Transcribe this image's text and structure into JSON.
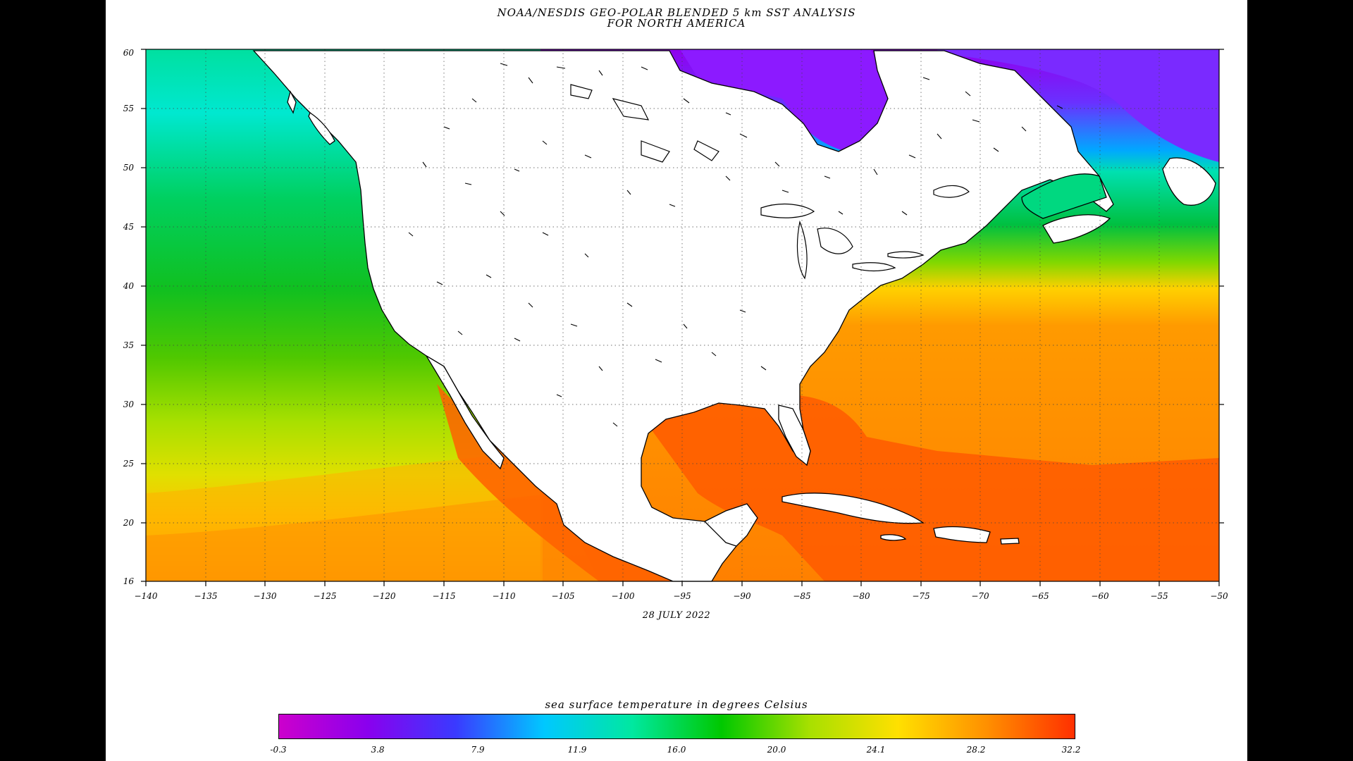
{
  "title_line1": "NOAA/NESDIS GEO-POLAR BLENDED 5 km SST ANALYSIS",
  "title_line2": "FOR NORTH AMERICA",
  "date": "28 JULY 2022",
  "colorbar": {
    "title": "sea surface temperature in degrees Celsius",
    "ticks": [
      "-0.3",
      "3.8",
      "7.9",
      "11.9",
      "16.0",
      "20.0",
      "24.1",
      "28.2",
      "32.2"
    ],
    "colors": [
      "#cc00cc",
      "#8a00ee",
      "#3a3aff",
      "#00c8ff",
      "#00e8a0",
      "#00c800",
      "#a8e000",
      "#ffe000",
      "#ff9000",
      "#ff3000"
    ]
  },
  "map": {
    "lon_range": [
      -140,
      -50
    ],
    "lat_range": [
      16,
      60
    ],
    "lon_ticks": [
      "−140",
      "−135",
      "−130",
      "−125",
      "−120",
      "−115",
      "−110",
      "−105",
      "−100",
      "−95",
      "−90",
      "−85",
      "−80",
      "−75",
      "−70",
      "−65",
      "−60",
      "−55",
      "−50"
    ],
    "lat_ticks": [
      "60",
      "55",
      "50",
      "45",
      "40",
      "35",
      "30",
      "25",
      "20",
      "16"
    ],
    "land_color": "#ffffff",
    "coast_color": "#000000"
  }
}
